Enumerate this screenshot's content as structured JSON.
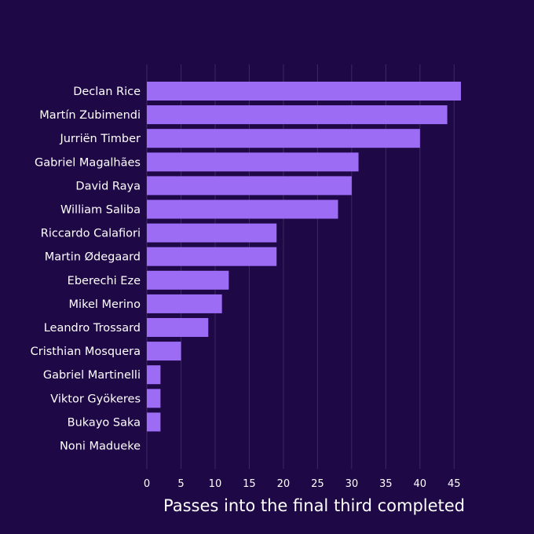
{
  "colors": {
    "background": "#1e0845",
    "bar": "#9d6cf5",
    "grid": "#3e2a66",
    "text": "#ffffff"
  },
  "chart_data": {
    "type": "bar",
    "orientation": "horizontal",
    "categories": [
      "Declan Rice",
      "Martín Zubimendi",
      "Jurriën Timber",
      "Gabriel Magalhães",
      "David Raya",
      "William Saliba",
      "Riccardo Calafiori",
      "Martin Ødegaard",
      "Eberechi Eze",
      "Mikel Merino",
      "Leandro Trossard",
      "Cristhian Mosquera",
      "Gabriel Martinelli",
      "Viktor Gyökeres",
      "Bukayo Saka",
      "Noni Madueke"
    ],
    "values": [
      46,
      44,
      40,
      31,
      30,
      28,
      19,
      19,
      12,
      11,
      9,
      5,
      2,
      2,
      2,
      0
    ],
    "xlabel": "Passes into the final third completed",
    "ylabel": "",
    "title": "",
    "xlim": [
      0,
      47.5
    ],
    "xticks": [
      0,
      5,
      10,
      15,
      20,
      25,
      30,
      35,
      40,
      45
    ],
    "grid": "vertical"
  }
}
